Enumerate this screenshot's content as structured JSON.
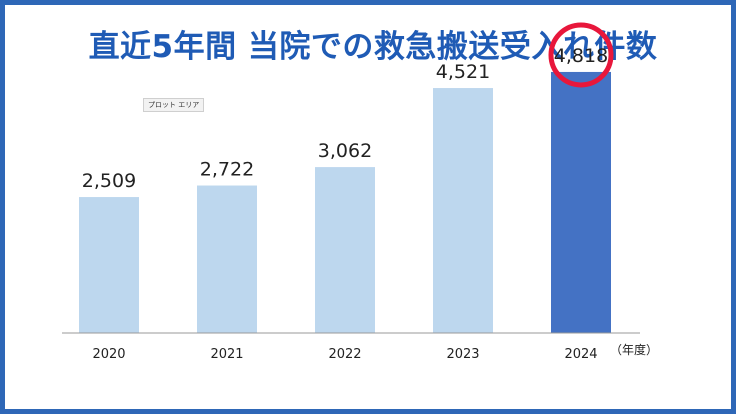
{
  "title": "直近5年間 当院での救急搬送受入れ件数",
  "plot_area_label": "プロット エリア",
  "colors": {
    "frame": "#2E67B7",
    "title": "#1F5BB5",
    "bar": "#BDD7EE",
    "highlight_bar": "#4472C4",
    "highlight_circle": "#E8173B",
    "axis": "#999999",
    "text": "#222222"
  },
  "chart_data": {
    "type": "bar",
    "categories": [
      "2020",
      "2021",
      "2022",
      "2023",
      "2024"
    ],
    "values": [
      2509,
      2722,
      3062,
      4521,
      4818
    ],
    "value_labels": [
      "2,509",
      "2,722",
      "3,062",
      "4,521",
      "4,818"
    ],
    "highlight_index": 4,
    "xlabel": "（年度）",
    "ylabel": "",
    "ylim": [
      0,
      5500
    ],
    "grid": false,
    "legend": "none"
  }
}
